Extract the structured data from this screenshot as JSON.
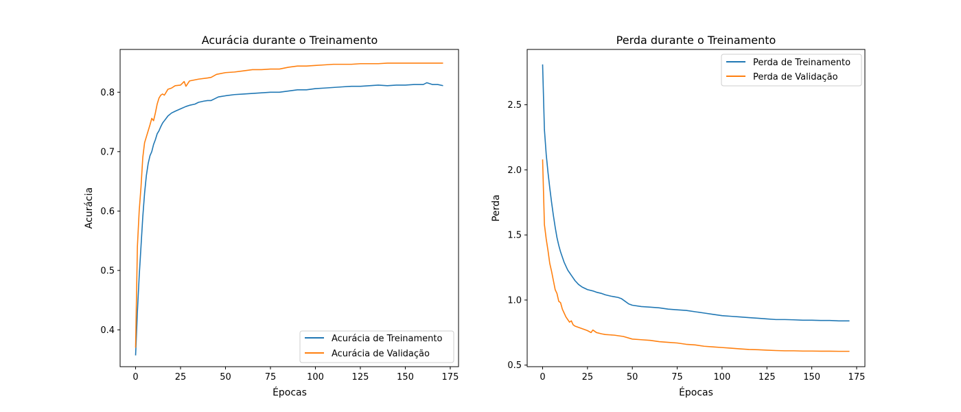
{
  "chart_data": [
    {
      "type": "line",
      "title": "Acurácia durante o Treinamento",
      "xlabel": "Épocas",
      "ylabel": "Acurácia",
      "xlim": [
        -8.6,
        179.6
      ],
      "ylim": [
        0.338,
        0.872
      ],
      "xticks": [
        0,
        25,
        50,
        75,
        100,
        125,
        150,
        175
      ],
      "yticks": [
        0.4,
        0.5,
        0.6,
        0.7,
        0.8
      ],
      "legend_position": "lower-right",
      "grid": false,
      "series": [
        {
          "name": "Acurácia de Treinamento",
          "color": "#1f77b4",
          "points": [
            [
              0,
              0.357
            ],
            [
              1,
              0.43
            ],
            [
              2,
              0.49
            ],
            [
              3,
              0.54
            ],
            [
              4,
              0.59
            ],
            [
              5,
              0.63
            ],
            [
              6,
              0.66
            ],
            [
              7,
              0.68
            ],
            [
              8,
              0.693
            ],
            [
              9,
              0.7
            ],
            [
              10,
              0.712
            ],
            [
              11,
              0.72
            ],
            [
              12,
              0.73
            ],
            [
              13,
              0.735
            ],
            [
              14,
              0.742
            ],
            [
              15,
              0.748
            ],
            [
              16,
              0.752
            ],
            [
              17,
              0.756
            ],
            [
              18,
              0.76
            ],
            [
              20,
              0.765
            ],
            [
              22,
              0.768
            ],
            [
              25,
              0.772
            ],
            [
              28,
              0.776
            ],
            [
              30,
              0.778
            ],
            [
              33,
              0.78
            ],
            [
              35,
              0.783
            ],
            [
              38,
              0.785
            ],
            [
              40,
              0.786
            ],
            [
              42,
              0.786
            ],
            [
              44,
              0.789
            ],
            [
              46,
              0.792
            ],
            [
              48,
              0.793
            ],
            [
              50,
              0.794
            ],
            [
              55,
              0.796
            ],
            [
              60,
              0.797
            ],
            [
              65,
              0.798
            ],
            [
              70,
              0.799
            ],
            [
              75,
              0.8
            ],
            [
              80,
              0.8
            ],
            [
              85,
              0.802
            ],
            [
              90,
              0.804
            ],
            [
              95,
              0.804
            ],
            [
              100,
              0.806
            ],
            [
              105,
              0.807
            ],
            [
              110,
              0.808
            ],
            [
              115,
              0.809
            ],
            [
              120,
              0.81
            ],
            [
              125,
              0.81
            ],
            [
              130,
              0.811
            ],
            [
              135,
              0.812
            ],
            [
              140,
              0.811
            ],
            [
              145,
              0.812
            ],
            [
              150,
              0.812
            ],
            [
              155,
              0.813
            ],
            [
              160,
              0.813
            ],
            [
              162,
              0.816
            ],
            [
              165,
              0.813
            ],
            [
              168,
              0.813
            ],
            [
              171,
              0.811
            ]
          ]
        },
        {
          "name": "Acurácia de Validação",
          "color": "#ff7f0e",
          "points": [
            [
              0,
              0.37
            ],
            [
              1,
              0.54
            ],
            [
              2,
              0.6
            ],
            [
              3,
              0.64
            ],
            [
              4,
              0.69
            ],
            [
              5,
              0.715
            ],
            [
              6,
              0.725
            ],
            [
              7,
              0.735
            ],
            [
              8,
              0.745
            ],
            [
              9,
              0.756
            ],
            [
              10,
              0.752
            ],
            [
              11,
              0.765
            ],
            [
              12,
              0.78
            ],
            [
              13,
              0.79
            ],
            [
              14,
              0.795
            ],
            [
              15,
              0.797
            ],
            [
              16,
              0.795
            ],
            [
              17,
              0.8
            ],
            [
              18,
              0.805
            ],
            [
              20,
              0.807
            ],
            [
              22,
              0.811
            ],
            [
              25,
              0.812
            ],
            [
              27,
              0.818
            ],
            [
              28,
              0.81
            ],
            [
              30,
              0.819
            ],
            [
              35,
              0.822
            ],
            [
              40,
              0.824
            ],
            [
              42,
              0.825
            ],
            [
              45,
              0.83
            ],
            [
              50,
              0.833
            ],
            [
              55,
              0.834
            ],
            [
              60,
              0.836
            ],
            [
              65,
              0.838
            ],
            [
              70,
              0.838
            ],
            [
              75,
              0.839
            ],
            [
              80,
              0.839
            ],
            [
              85,
              0.842
            ],
            [
              90,
              0.844
            ],
            [
              95,
              0.844
            ],
            [
              100,
              0.845
            ],
            [
              105,
              0.846
            ],
            [
              110,
              0.847
            ],
            [
              115,
              0.847
            ],
            [
              120,
              0.847
            ],
            [
              125,
              0.848
            ],
            [
              130,
              0.848
            ],
            [
              135,
              0.848
            ],
            [
              140,
              0.849
            ],
            [
              145,
              0.849
            ],
            [
              150,
              0.849
            ],
            [
              155,
              0.849
            ],
            [
              160,
              0.849
            ],
            [
              165,
              0.849
            ],
            [
              171,
              0.849
            ]
          ]
        }
      ]
    },
    {
      "type": "line",
      "title": "Perda durante o Treinamento",
      "xlabel": "Épocas",
      "ylabel": "Perda",
      "xlim": [
        -8.6,
        179.6
      ],
      "ylim": [
        0.488,
        2.925
      ],
      "xticks": [
        0,
        25,
        50,
        75,
        100,
        125,
        150,
        175
      ],
      "yticks": [
        0.5,
        1.0,
        1.5,
        2.0,
        2.5
      ],
      "legend_position": "upper-right",
      "grid": false,
      "series": [
        {
          "name": "Perda de Treinamento",
          "color": "#1f77b4",
          "points": [
            [
              0,
              2.81
            ],
            [
              1,
              2.31
            ],
            [
              2,
              2.12
            ],
            [
              3,
              1.98
            ],
            [
              4,
              1.86
            ],
            [
              5,
              1.75
            ],
            [
              6,
              1.65
            ],
            [
              7,
              1.56
            ],
            [
              8,
              1.48
            ],
            [
              9,
              1.42
            ],
            [
              10,
              1.37
            ],
            [
              11,
              1.33
            ],
            [
              12,
              1.29
            ],
            [
              13,
              1.26
            ],
            [
              14,
              1.23
            ],
            [
              15,
              1.21
            ],
            [
              16,
              1.19
            ],
            [
              17,
              1.17
            ],
            [
              18,
              1.15
            ],
            [
              20,
              1.12
            ],
            [
              22,
              1.1
            ],
            [
              25,
              1.08
            ],
            [
              28,
              1.07
            ],
            [
              30,
              1.06
            ],
            [
              33,
              1.05
            ],
            [
              35,
              1.04
            ],
            [
              38,
              1.03
            ],
            [
              40,
              1.025
            ],
            [
              42,
              1.02
            ],
            [
              44,
              1.01
            ],
            [
              46,
              0.99
            ],
            [
              48,
              0.97
            ],
            [
              50,
              0.96
            ],
            [
              55,
              0.95
            ],
            [
              60,
              0.945
            ],
            [
              65,
              0.94
            ],
            [
              70,
              0.93
            ],
            [
              75,
              0.925
            ],
            [
              80,
              0.92
            ],
            [
              85,
              0.91
            ],
            [
              90,
              0.9
            ],
            [
              95,
              0.89
            ],
            [
              100,
              0.88
            ],
            [
              105,
              0.875
            ],
            [
              110,
              0.87
            ],
            [
              115,
              0.865
            ],
            [
              120,
              0.86
            ],
            [
              125,
              0.855
            ],
            [
              130,
              0.85
            ],
            [
              135,
              0.85
            ],
            [
              140,
              0.848
            ],
            [
              145,
              0.845
            ],
            [
              150,
              0.845
            ],
            [
              155,
              0.843
            ],
            [
              160,
              0.843
            ],
            [
              165,
              0.84
            ],
            [
              171,
              0.84
            ]
          ]
        },
        {
          "name": "Perda de Validação",
          "color": "#ff7f0e",
          "points": [
            [
              0,
              2.08
            ],
            [
              1,
              1.58
            ],
            [
              2,
              1.47
            ],
            [
              3,
              1.38
            ],
            [
              4,
              1.28
            ],
            [
              5,
              1.22
            ],
            [
              6,
              1.15
            ],
            [
              7,
              1.08
            ],
            [
              8,
              1.05
            ],
            [
              9,
              0.99
            ],
            [
              10,
              0.98
            ],
            [
              11,
              0.93
            ],
            [
              12,
              0.9
            ],
            [
              13,
              0.87
            ],
            [
              14,
              0.85
            ],
            [
              15,
              0.83
            ],
            [
              16,
              0.84
            ],
            [
              17,
              0.81
            ],
            [
              18,
              0.8
            ],
            [
              20,
              0.79
            ],
            [
              22,
              0.78
            ],
            [
              24,
              0.77
            ],
            [
              25,
              0.765
            ],
            [
              27,
              0.75
            ],
            [
              28,
              0.77
            ],
            [
              30,
              0.75
            ],
            [
              33,
              0.74
            ],
            [
              35,
              0.735
            ],
            [
              40,
              0.73
            ],
            [
              45,
              0.72
            ],
            [
              50,
              0.7
            ],
            [
              55,
              0.695
            ],
            [
              60,
              0.69
            ],
            [
              65,
              0.68
            ],
            [
              70,
              0.675
            ],
            [
              75,
              0.67
            ],
            [
              80,
              0.66
            ],
            [
              85,
              0.655
            ],
            [
              90,
              0.645
            ],
            [
              95,
              0.64
            ],
            [
              100,
              0.635
            ],
            [
              105,
              0.63
            ],
            [
              110,
              0.625
            ],
            [
              115,
              0.62
            ],
            [
              120,
              0.618
            ],
            [
              125,
              0.615
            ],
            [
              130,
              0.612
            ],
            [
              135,
              0.61
            ],
            [
              140,
              0.61
            ],
            [
              145,
              0.608
            ],
            [
              150,
              0.608
            ],
            [
              155,
              0.607
            ],
            [
              160,
              0.607
            ],
            [
              165,
              0.606
            ],
            [
              171,
              0.606
            ]
          ]
        }
      ]
    }
  ]
}
